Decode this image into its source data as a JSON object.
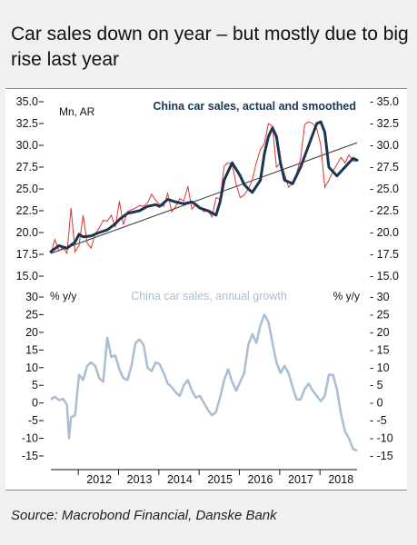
{
  "title": "Car sales down on year – but mostly due to big rise last year",
  "source": "Source: Macrobond Financial, Danske Bank",
  "colors": {
    "smoothed": "#1c3553",
    "actual": "#d9362d",
    "trend": "#333333",
    "growth": "#a9bdd3",
    "background": "#ffffff",
    "page": "#f0f0ee"
  },
  "chart_data": [
    {
      "type": "line",
      "title": "China car sales, actual and smoothed",
      "ylabel": "Mn, AR",
      "ylim": [
        15.0,
        35.0
      ],
      "yticks": [
        "15.0",
        "17.5",
        "20.0",
        "22.5",
        "25.0",
        "27.5",
        "30.0",
        "32.5",
        "35.0"
      ],
      "x_start": 2011.3,
      "x_end": 2018.9,
      "series": [
        {
          "role": "smoothed",
          "x": [
            2011.3,
            2011.5,
            2011.7,
            2011.9,
            2012.0,
            2012.1,
            2012.3,
            2012.5,
            2012.7,
            2012.9,
            2013.0,
            2013.2,
            2013.5,
            2013.7,
            2013.9,
            2014.0,
            2014.2,
            2014.4,
            2014.6,
            2014.8,
            2014.9,
            2015.0,
            2015.2,
            2015.4,
            2015.5,
            2015.6,
            2015.8,
            2016.0,
            2016.1,
            2016.2,
            2016.3,
            2016.5,
            2016.6,
            2016.7,
            2016.8,
            2016.9,
            2017.0,
            2017.1,
            2017.3,
            2017.5,
            2017.7,
            2017.9,
            2018.0,
            2018.1,
            2018.2,
            2018.4,
            2018.6,
            2018.8,
            2018.9
          ],
          "y": [
            17.8,
            18.5,
            18.2,
            18.9,
            19.8,
            19.5,
            19.6,
            20.0,
            20.3,
            21.0,
            21.5,
            22.2,
            22.5,
            23.0,
            23.2,
            23.0,
            23.8,
            23.5,
            23.3,
            23.5,
            23.2,
            22.8,
            22.5,
            22.0,
            23.5,
            26.0,
            28.0,
            26.5,
            25.5,
            25.0,
            24.6,
            26.0,
            29.0,
            31.0,
            32.0,
            31.0,
            28.0,
            26.0,
            25.6,
            27.5,
            30.0,
            32.5,
            32.7,
            31.5,
            27.5,
            26.5,
            27.5,
            28.5,
            28.3
          ]
        },
        {
          "role": "actual",
          "x": [
            2011.3,
            2011.4,
            2011.5,
            2011.6,
            2011.7,
            2011.8,
            2011.9,
            2012.0,
            2012.1,
            2012.2,
            2012.3,
            2012.4,
            2012.5,
            2012.6,
            2012.7,
            2012.8,
            2012.9,
            2013.0,
            2013.1,
            2013.2,
            2013.3,
            2013.4,
            2013.5,
            2013.6,
            2013.7,
            2013.8,
            2013.9,
            2014.0,
            2014.1,
            2014.2,
            2014.3,
            2014.4,
            2014.5,
            2014.6,
            2014.7,
            2014.8,
            2014.9,
            2015.0,
            2015.1,
            2015.2,
            2015.3,
            2015.4,
            2015.5,
            2015.6,
            2015.7,
            2015.8,
            2015.9,
            2016.0,
            2016.1,
            2016.2,
            2016.3,
            2016.4,
            2016.5,
            2016.6,
            2016.7,
            2016.8,
            2016.9,
            2017.0,
            2017.1,
            2017.2,
            2017.3,
            2017.4,
            2017.5,
            2017.6,
            2017.7,
            2017.8,
            2017.9,
            2018.0,
            2018.1,
            2018.2,
            2018.3,
            2018.4,
            2018.5,
            2018.6,
            2018.7,
            2018.8,
            2018.9
          ],
          "y": [
            17.6,
            19.2,
            17.9,
            18.3,
            17.6,
            22.8,
            17.8,
            18.5,
            22.0,
            18.8,
            18.2,
            19.9,
            20.5,
            21.4,
            21.3,
            22.0,
            20.6,
            23.6,
            20.9,
            22.4,
            22.6,
            22.8,
            23.1,
            23.0,
            23.4,
            24.4,
            23.7,
            23.2,
            23.0,
            24.5,
            22.4,
            23.0,
            23.9,
            23.6,
            25.3,
            22.7,
            23.2,
            22.8,
            22.4,
            22.5,
            21.8,
            24.0,
            23.8,
            27.6,
            28.0,
            27.8,
            25.5,
            24.0,
            24.3,
            25.0,
            26.0,
            28.0,
            29.5,
            30.2,
            32.5,
            32.2,
            27.5,
            28.0,
            26.7,
            25.2,
            25.6,
            26.8,
            28.5,
            32.4,
            32.7,
            32.5,
            31.9,
            30.0,
            25.2,
            26.0,
            27.0,
            27.8,
            28.6,
            28.0,
            28.9,
            28.2,
            28.2
          ]
        },
        {
          "role": "trend",
          "x": [
            2011.3,
            2018.9
          ],
          "y": [
            17.6,
            30.3
          ]
        }
      ]
    },
    {
      "type": "line",
      "title": "China car sales, annual growth",
      "ylabel": "% y/y",
      "ylim": [
        -15,
        30
      ],
      "yticks": [
        "-15",
        "-10",
        "-5",
        "0",
        "5",
        "10",
        "15",
        "20",
        "25",
        "30"
      ],
      "xticks": [
        "2012",
        "2013",
        "2014",
        "2015",
        "2016",
        "2017",
        "2018"
      ],
      "series": [
        {
          "role": "growth",
          "x": [
            2011.3,
            2011.4,
            2011.5,
            2011.6,
            2011.7,
            2011.75,
            2011.8,
            2011.9,
            2012.0,
            2012.1,
            2012.2,
            2012.3,
            2012.4,
            2012.5,
            2012.6,
            2012.7,
            2012.8,
            2012.9,
            2013.0,
            2013.1,
            2013.2,
            2013.3,
            2013.4,
            2013.5,
            2013.6,
            2013.7,
            2013.8,
            2013.9,
            2014.0,
            2014.1,
            2014.2,
            2014.3,
            2014.4,
            2014.5,
            2014.6,
            2014.7,
            2014.8,
            2014.9,
            2015.0,
            2015.1,
            2015.2,
            2015.3,
            2015.4,
            2015.5,
            2015.6,
            2015.7,
            2015.8,
            2015.9,
            2016.0,
            2016.1,
            2016.2,
            2016.3,
            2016.4,
            2016.5,
            2016.6,
            2016.7,
            2016.8,
            2016.9,
            2017.0,
            2017.1,
            2017.2,
            2017.3,
            2017.4,
            2017.5,
            2017.6,
            2017.7,
            2017.8,
            2017.9,
            2018.0,
            2018.1,
            2018.2,
            2018.3,
            2018.4,
            2018.5,
            2018.6,
            2018.7,
            2018.8,
            2018.9
          ],
          "y": [
            1.0,
            1.8,
            0.8,
            1.2,
            -0.5,
            -10.0,
            -4.0,
            -3.5,
            8.0,
            6.5,
            10.5,
            11.5,
            10.5,
            7.0,
            6.0,
            18.5,
            13.0,
            13.5,
            9.5,
            7.0,
            6.5,
            10.5,
            17.0,
            18.0,
            16.5,
            10.0,
            9.0,
            11.5,
            11.0,
            8.5,
            5.5,
            4.5,
            3.0,
            2.0,
            5.0,
            6.5,
            3.5,
            1.5,
            2.0,
            0.0,
            -2.0,
            -3.5,
            -2.5,
            1.5,
            6.5,
            9.5,
            6.0,
            3.5,
            6.0,
            8.5,
            16.5,
            19.5,
            17.0,
            22.0,
            25.0,
            23.0,
            17.0,
            11.5,
            8.5,
            10.5,
            8.5,
            4.5,
            1.0,
            1.0,
            4.0,
            5.5,
            3.5,
            2.0,
            0.5,
            2.0,
            8.0,
            8.0,
            4.0,
            -3.0,
            -8.0,
            -10.0,
            -13.0,
            -13.5
          ]
        }
      ]
    }
  ]
}
